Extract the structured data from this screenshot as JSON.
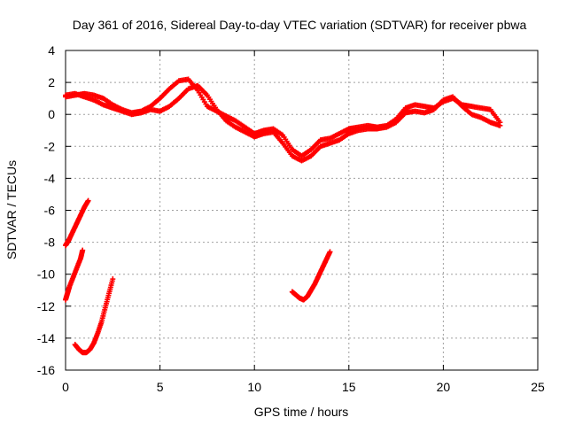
{
  "chart_data": {
    "type": "scatter",
    "title": "Day 361 of 2016, Sidereal Day-to-day VTEC variation (SDTVAR) for receiver pbwa",
    "xlabel": "GPS time / hours",
    "ylabel": "SDTVAR / TECUs",
    "xlim": [
      0,
      25
    ],
    "ylim": [
      -16,
      4
    ],
    "xticks": [
      0,
      5,
      10,
      15,
      20,
      25
    ],
    "yticks": [
      -16,
      -14,
      -12,
      -10,
      -8,
      -6,
      -4,
      -2,
      0,
      2,
      4
    ],
    "grid": true,
    "marker": "+",
    "color": "#ff0000",
    "series": [
      {
        "name": "main-band-a",
        "x": [
          0,
          0.5,
          1,
          1.5,
          2,
          2.5,
          3,
          3.5,
          4,
          4.5,
          5,
          5.5,
          6,
          6.5,
          7,
          7.5,
          8,
          8.5,
          9,
          9.5,
          10,
          10.5,
          11,
          11.5,
          12,
          12.5,
          13,
          13.5,
          14,
          14.5,
          15,
          15.5,
          16,
          16.5,
          17,
          17.5,
          18,
          18.5,
          19,
          19.5,
          20,
          20.5,
          21,
          21.5,
          22,
          22.5,
          23
        ],
        "y": [
          1.1,
          1.2,
          1.3,
          1.2,
          1.0,
          0.6,
          0.3,
          0.1,
          0.2,
          0.5,
          1.0,
          1.6,
          2.1,
          2.2,
          1.5,
          0.5,
          0.2,
          -0.1,
          -0.4,
          -0.8,
          -1.2,
          -1.0,
          -0.9,
          -1.3,
          -2.2,
          -2.6,
          -2.2,
          -1.6,
          -1.5,
          -1.2,
          -0.9,
          -0.8,
          -0.7,
          -0.8,
          -0.7,
          -0.3,
          0.4,
          0.6,
          0.5,
          0.4,
          0.8,
          1.0,
          0.6,
          0.5,
          0.4,
          0.3,
          -0.5
        ]
      },
      {
        "name": "main-band-b",
        "x": [
          0,
          0.5,
          1,
          1.5,
          2,
          2.5,
          3,
          3.5,
          4,
          4.5,
          5,
          5.5,
          6,
          6.5,
          7,
          7.5,
          8,
          8.5,
          9,
          9.5,
          10,
          10.5,
          11,
          11.5,
          12,
          12.5,
          13,
          13.5,
          14,
          14.5,
          15,
          15.5,
          16,
          16.5,
          17,
          17.5,
          18,
          18.5,
          19,
          19.5,
          20,
          20.5,
          21,
          21.5,
          22,
          22.5,
          23
        ],
        "y": [
          1.2,
          1.3,
          1.1,
          0.9,
          0.6,
          0.4,
          0.2,
          0.0,
          0.1,
          0.3,
          0.2,
          0.5,
          1.0,
          1.6,
          1.8,
          1.2,
          0.3,
          -0.4,
          -0.8,
          -1.1,
          -1.4,
          -1.2,
          -1.1,
          -1.8,
          -2.6,
          -2.9,
          -2.6,
          -2.0,
          -1.8,
          -1.6,
          -1.2,
          -1.0,
          -0.9,
          -0.9,
          -0.8,
          -0.5,
          0.1,
          0.2,
          0.1,
          0.3,
          0.9,
          1.1,
          0.5,
          0.0,
          -0.2,
          -0.5,
          -0.7
        ]
      },
      {
        "name": "descending-arc-early",
        "x": [
          0,
          0.1,
          0.2,
          0.4,
          0.6,
          0.8,
          1.0,
          1.2
        ],
        "y": [
          -8.2,
          -8.0,
          -7.8,
          -7.3,
          -6.8,
          -6.3,
          -5.8,
          -5.4
        ]
      },
      {
        "name": "descending-arc-mid",
        "x": [
          0,
          0.1,
          0.2,
          0.4,
          0.6,
          0.8,
          0.9
        ],
        "y": [
          -11.6,
          -11.2,
          -10.8,
          -10.2,
          -9.6,
          -9.0,
          -8.5
        ]
      },
      {
        "name": "deep-arc",
        "x": [
          0.5,
          0.7,
          0.9,
          1.1,
          1.3,
          1.5,
          1.7,
          1.9,
          2.1,
          2.3,
          2.5
        ],
        "y": [
          -14.4,
          -14.7,
          -14.9,
          -14.9,
          -14.7,
          -14.3,
          -13.7,
          -13.0,
          -12.1,
          -11.2,
          -10.3
        ]
      },
      {
        "name": "late-arc",
        "x": [
          12,
          12.2,
          12.4,
          12.6,
          12.8,
          13.0,
          13.2,
          13.4,
          13.6,
          13.8,
          14.0
        ],
        "y": [
          -11.1,
          -11.3,
          -11.5,
          -11.6,
          -11.4,
          -11.0,
          -10.6,
          -10.1,
          -9.6,
          -9.1,
          -8.6
        ]
      }
    ]
  }
}
